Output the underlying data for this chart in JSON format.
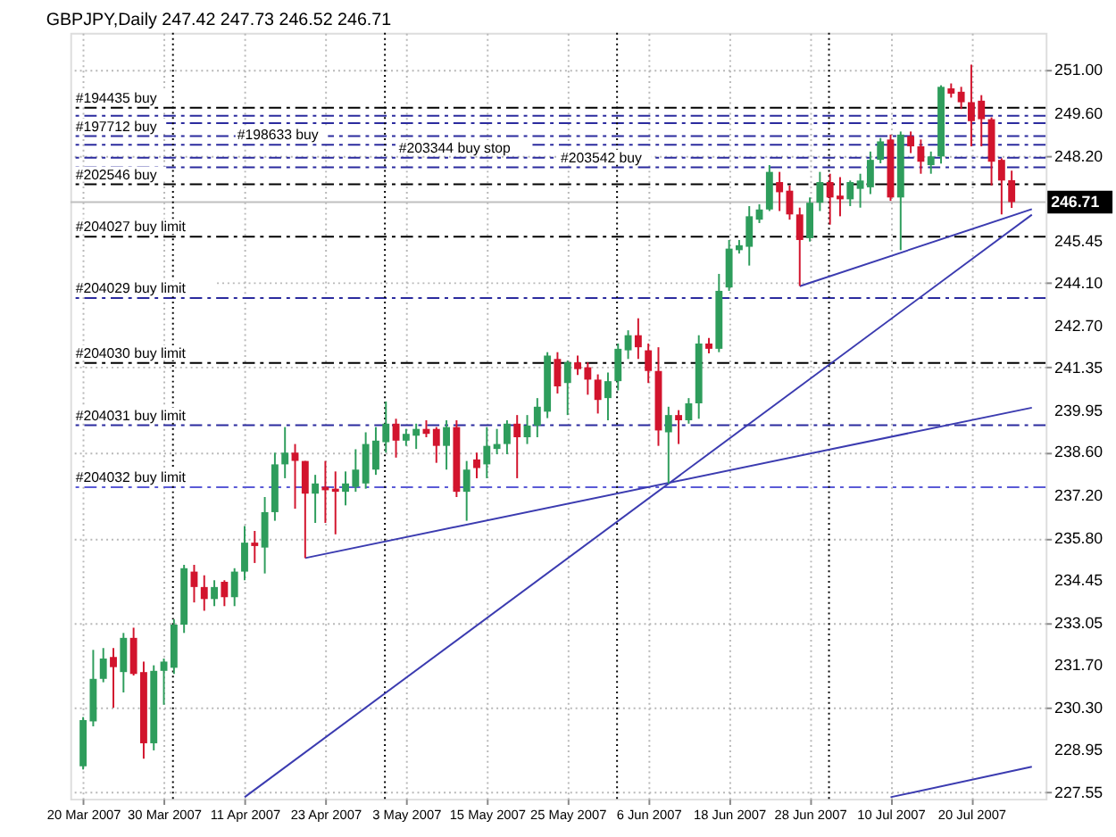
{
  "chart_data": {
    "type": "candlestick",
    "title": "GBPJPY,Daily  247.42 247.73 246.52 246.71",
    "categories": [
      "20 Mar 2007",
      null,
      null,
      null,
      null,
      null,
      null,
      null,
      "30 Mar 2007",
      null,
      null,
      null,
      null,
      null,
      null,
      null,
      "11 Apr 2007",
      null,
      null,
      null,
      null,
      null,
      null,
      null,
      "23 Apr 2007",
      null,
      null,
      null,
      null,
      null,
      null,
      null,
      "3 May 2007",
      null,
      null,
      null,
      null,
      null,
      null,
      null,
      "15 May 2007",
      null,
      null,
      null,
      null,
      null,
      null,
      null,
      "25 May 2007",
      null,
      null,
      null,
      null,
      null,
      null,
      null,
      "6 Jun 2007",
      null,
      null,
      null,
      null,
      null,
      null,
      null,
      "18 Jun 2007",
      null,
      null,
      null,
      null,
      null,
      null,
      null,
      "28 Jun 2007",
      null,
      null,
      null,
      null,
      null,
      null,
      null,
      "10 Jul 2007",
      null,
      null,
      null,
      null,
      null,
      null,
      null,
      "20 Jul 2007",
      null,
      null,
      null,
      null,
      null,
      null
    ],
    "ohlc": [
      [
        228.4,
        230.0,
        228.3,
        229.9
      ],
      [
        229.86,
        232.18,
        229.7,
        231.24
      ],
      [
        231.24,
        232.24,
        231.13,
        231.9
      ],
      [
        231.95,
        232.24,
        230.3,
        231.62
      ],
      [
        231.46,
        232.73,
        230.8,
        232.57
      ],
      [
        232.57,
        232.9,
        231.35,
        231.4
      ],
      [
        231.46,
        231.8,
        228.65,
        229.15
      ],
      [
        229.15,
        231.68,
        228.92,
        231.5
      ],
      [
        231.5,
        231.9,
        230.4,
        231.8
      ],
      [
        231.6,
        233.17,
        231.4,
        233.0
      ],
      [
        233.0,
        234.94,
        232.73,
        234.83
      ],
      [
        234.72,
        234.94,
        233.72,
        234.22
      ],
      [
        234.22,
        234.6,
        233.45,
        233.83
      ],
      [
        233.83,
        234.44,
        233.6,
        234.22
      ],
      [
        234.39,
        234.44,
        233.6,
        233.89
      ],
      [
        233.89,
        234.83,
        233.6,
        234.72
      ],
      [
        234.72,
        236.2,
        234.44,
        235.66
      ],
      [
        235.66,
        236.04,
        235.0,
        235.55
      ],
      [
        235.5,
        237.14,
        234.66,
        236.65
      ],
      [
        236.65,
        238.58,
        236.37,
        238.2
      ],
      [
        238.2,
        239.41,
        237.75,
        238.58
      ],
      [
        238.58,
        238.86,
        236.76,
        238.31
      ],
      [
        238.31,
        238.31,
        235.16,
        237.25
      ],
      [
        237.25,
        237.86,
        236.3,
        237.58
      ],
      [
        237.47,
        238.31,
        236.3,
        237.36
      ],
      [
        237.41,
        237.97,
        235.93,
        237.31
      ],
      [
        237.31,
        237.97,
        236.87,
        237.58
      ],
      [
        237.47,
        238.69,
        237.31,
        238.03
      ],
      [
        237.58,
        239.24,
        237.41,
        238.86
      ],
      [
        238.03,
        239.41,
        237.86,
        238.97
      ],
      [
        238.92,
        240.24,
        238.58,
        239.52
      ],
      [
        239.52,
        239.68,
        238.42,
        238.97
      ],
      [
        238.97,
        239.35,
        238.8,
        239.19
      ],
      [
        239.13,
        239.52,
        238.7,
        239.35
      ],
      [
        239.35,
        239.63,
        239.08,
        239.19
      ],
      [
        239.35,
        239.41,
        238.25,
        238.8
      ],
      [
        238.8,
        239.63,
        238.03,
        239.41
      ],
      [
        239.41,
        239.63,
        237.14,
        237.31
      ],
      [
        237.31,
        238.31,
        236.37,
        238.03
      ],
      [
        238.36,
        238.58,
        237.75,
        238.08
      ],
      [
        238.2,
        239.41,
        237.75,
        238.8
      ],
      [
        238.7,
        239.35,
        238.53,
        238.86
      ],
      [
        238.86,
        239.63,
        238.53,
        239.52
      ],
      [
        239.52,
        239.8,
        237.75,
        239.08
      ],
      [
        239.08,
        239.8,
        238.86,
        239.46
      ],
      [
        239.46,
        240.35,
        239.08,
        240.07
      ],
      [
        239.91,
        241.84,
        239.7,
        241.73
      ],
      [
        241.62,
        241.84,
        240.5,
        240.73
      ],
      [
        240.84,
        241.57,
        239.8,
        241.51
      ],
      [
        241.51,
        241.73,
        241.1,
        241.29
      ],
      [
        241.35,
        241.51,
        240.46,
        240.95
      ],
      [
        240.95,
        241.12,
        239.85,
        240.29
      ],
      [
        240.35,
        241.18,
        239.63,
        240.9
      ],
      [
        240.9,
        242.12,
        240.6,
        241.95
      ],
      [
        241.9,
        242.55,
        241.62,
        242.39
      ],
      [
        242.39,
        242.94,
        241.62,
        242.0
      ],
      [
        241.9,
        242.12,
        240.84,
        241.23
      ],
      [
        241.23,
        242.0,
        238.8,
        239.3
      ],
      [
        239.24,
        240.07,
        237.58,
        239.8
      ],
      [
        239.8,
        239.96,
        238.86,
        239.63
      ],
      [
        239.63,
        240.35,
        239.52,
        240.18
      ],
      [
        240.18,
        242.39,
        239.68,
        242.12
      ],
      [
        242.12,
        242.3,
        241.8,
        241.95
      ],
      [
        241.95,
        244.38,
        241.84,
        243.83
      ],
      [
        243.94,
        245.48,
        243.83,
        245.2
      ],
      [
        245.15,
        245.48,
        245.04,
        245.31
      ],
      [
        245.26,
        246.58,
        244.65,
        246.25
      ],
      [
        246.14,
        246.64,
        246.03,
        246.47
      ],
      [
        246.47,
        247.91,
        246.42,
        247.69
      ],
      [
        247.36,
        247.69,
        246.42,
        247.03
      ],
      [
        247.08,
        247.25,
        246.14,
        246.31
      ],
      [
        246.31,
        246.53,
        243.99,
        245.48
      ],
      [
        245.54,
        246.86,
        245.43,
        246.69
      ],
      [
        246.69,
        247.69,
        246.42,
        247.36
      ],
      [
        247.36,
        247.63,
        245.98,
        246.86
      ],
      [
        246.92,
        247.52,
        246.25,
        246.8
      ],
      [
        246.8,
        247.41,
        246.58,
        247.36
      ],
      [
        247.14,
        247.63,
        246.53,
        247.41
      ],
      [
        247.19,
        248.35,
        246.97,
        248.08
      ],
      [
        248.08,
        248.79,
        247.97,
        248.68
      ],
      [
        248.74,
        248.9,
        246.75,
        246.86
      ],
      [
        246.86,
        249.0,
        245.15,
        248.9
      ],
      [
        248.85,
        249.0,
        248.3,
        248.52
      ],
      [
        248.52,
        248.74,
        247.63,
        248.02
      ],
      [
        247.91,
        248.35,
        247.63,
        248.19
      ],
      [
        248.19,
        250.5,
        247.96,
        250.45
      ],
      [
        250.4,
        250.56,
        250.1,
        250.23
      ],
      [
        250.29,
        250.45,
        249.73,
        249.95
      ],
      [
        249.95,
        251.17,
        248.52,
        249.34
      ],
      [
        250.0,
        250.18,
        248.52,
        249.4
      ],
      [
        249.4,
        249.46,
        247.25,
        248.02
      ],
      [
        248.08,
        248.13,
        246.31,
        247.41
      ],
      [
        247.42,
        247.73,
        246.52,
        246.71
      ],
      null,
      null
    ],
    "colors": [
      "#2e9d5c",
      "#2e9d5c",
      "#2e9d5c",
      "#d2142d",
      "#2e9d5c",
      "#d2142d",
      "#d2142d",
      "#2e9d5c",
      "#2e9d5c",
      "#2e9d5c",
      "#2e9d5c",
      "#d2142d",
      "#d2142d",
      "#2e9d5c",
      "#d2142d",
      "#2e9d5c",
      "#2e9d5c",
      "#d2142d",
      "#2e9d5c",
      "#2e9d5c",
      "#2e9d5c",
      "#d2142d",
      "#d2142d",
      "#2e9d5c",
      "#d2142d",
      "#d2142d",
      "#2e9d5c",
      "#2e9d5c",
      "#2e9d5c",
      "#2e9d5c",
      "#2e9d5c",
      "#d2142d",
      "#2e9d5c",
      "#2e9d5c",
      "#d2142d",
      "#d2142d",
      "#2e9d5c",
      "#d2142d",
      "#2e9d5c",
      "#d2142d",
      "#2e9d5c",
      "#2e9d5c",
      "#2e9d5c",
      "#d2142d",
      "#2e9d5c",
      "#2e9d5c",
      "#2e9d5c",
      "#d2142d",
      "#2e9d5c",
      "#d2142d",
      "#d2142d",
      "#d2142d",
      "#2e9d5c",
      "#2e9d5c",
      "#2e9d5c",
      "#d2142d",
      "#d2142d",
      "#d2142d",
      "#2e9d5c",
      "#d2142d",
      "#2e9d5c",
      "#2e9d5c",
      "#d2142d",
      "#2e9d5c",
      "#2e9d5c",
      "#2e9d5c",
      "#2e9d5c",
      "#2e9d5c",
      "#2e9d5c",
      "#d2142d",
      "#d2142d",
      "#d2142d",
      "#2e9d5c",
      "#2e9d5c",
      "#d2142d",
      "#d2142d",
      "#2e9d5c",
      "#2e9d5c",
      "#2e9d5c",
      "#2e9d5c",
      "#d2142d",
      "#2e9d5c",
      "#d2142d",
      "#d2142d",
      "#2e9d5c",
      "#2e9d5c",
      "#d2142d",
      "#d2142d",
      "#d2142d",
      "#d2142d",
      "#d2142d",
      "#d2142d",
      "#d2142d",
      null,
      null
    ],
    "series": [
      {
        "type": "line",
        "color": "#3b3bb0",
        "values": [
          null,
          null,
          null,
          null,
          null,
          null,
          null,
          null,
          null,
          null,
          null,
          null,
          null,
          null,
          null,
          null,
          null,
          null,
          null,
          null,
          null,
          null,
          235.16,
          null,
          null,
          null,
          null,
          null,
          null,
          null,
          null,
          null,
          null,
          null,
          null,
          null,
          null,
          null,
          null,
          null,
          null,
          null,
          null,
          null,
          null,
          null,
          null,
          null,
          null,
          null,
          null,
          null,
          null,
          null,
          null,
          null,
          null,
          null,
          null,
          null,
          null,
          null,
          null,
          null,
          null,
          null,
          null,
          null,
          null,
          null,
          null,
          null,
          null,
          null,
          null,
          null,
          null,
          null,
          null,
          null,
          null,
          null,
          null,
          null,
          null,
          null,
          null,
          null,
          null,
          null,
          null,
          null,
          null,
          null,
          240.04
        ]
      },
      {
        "type": "line",
        "color": "#3b3bb0",
        "values": [
          null,
          null,
          null,
          null,
          null,
          null,
          null,
          null,
          null,
          null,
          null,
          null,
          null,
          null,
          null,
          null,
          227.4,
          null,
          null,
          null,
          null,
          null,
          null,
          null,
          null,
          null,
          null,
          null,
          null,
          null,
          null,
          null,
          null,
          null,
          null,
          null,
          null,
          null,
          null,
          null,
          null,
          null,
          null,
          null,
          null,
          null,
          null,
          null,
          null,
          null,
          null,
          null,
          null,
          null,
          null,
          null,
          null,
          null,
          null,
          null,
          null,
          null,
          null,
          null,
          null,
          null,
          null,
          null,
          null,
          null,
          null,
          null,
          null,
          null,
          null,
          null,
          null,
          null,
          null,
          null,
          null,
          null,
          null,
          null,
          null,
          null,
          null,
          null,
          null,
          null,
          null,
          null,
          null,
          null,
          246.3
        ]
      },
      {
        "type": "line",
        "color": "#3b3bb0",
        "values": [
          null,
          null,
          null,
          null,
          null,
          null,
          null,
          null,
          null,
          null,
          null,
          null,
          null,
          null,
          null,
          null,
          null,
          null,
          null,
          null,
          null,
          null,
          null,
          null,
          null,
          null,
          null,
          null,
          null,
          null,
          null,
          null,
          null,
          null,
          null,
          null,
          null,
          null,
          null,
          null,
          null,
          null,
          null,
          null,
          null,
          null,
          null,
          null,
          null,
          null,
          null,
          null,
          null,
          null,
          null,
          null,
          null,
          null,
          null,
          null,
          null,
          null,
          null,
          null,
          null,
          null,
          null,
          null,
          null,
          null,
          null,
          243.98,
          null,
          null,
          null,
          null,
          null,
          null,
          null,
          null,
          null,
          null,
          null,
          null,
          null,
          null,
          null,
          null,
          null,
          null,
          null,
          null,
          null,
          null,
          246.48
        ]
      },
      {
        "type": "line",
        "color": "#3b3bb0",
        "values": [
          null,
          null,
          null,
          null,
          null,
          null,
          null,
          null,
          null,
          null,
          null,
          null,
          null,
          null,
          null,
          null,
          null,
          null,
          null,
          null,
          null,
          null,
          null,
          null,
          null,
          null,
          null,
          null,
          null,
          null,
          null,
          null,
          null,
          null,
          null,
          null,
          null,
          null,
          null,
          null,
          null,
          null,
          null,
          null,
          null,
          null,
          null,
          null,
          null,
          null,
          null,
          null,
          null,
          null,
          null,
          null,
          null,
          null,
          null,
          null,
          null,
          null,
          null,
          null,
          null,
          null,
          null,
          null,
          null,
          null,
          null,
          null,
          null,
          null,
          null,
          null,
          null,
          null,
          null,
          null,
          227.4,
          null,
          null,
          null,
          null,
          null,
          null,
          null,
          null,
          null,
          null,
          null,
          null,
          null,
          228.39
        ]
      }
    ],
    "ref_lines": [
      {
        "axis": "y",
        "value": 249.77,
        "label": "#194435 buy",
        "color": "#000000",
        "line_style": "dashed"
      },
      {
        "axis": "y",
        "value": 249.51,
        "label": null,
        "color": "#2b2b9e",
        "line_style": "dashed"
      },
      {
        "axis": "y",
        "value": 249.27,
        "label": null,
        "color": "#2b2b9e",
        "line_style": "dashed"
      },
      {
        "axis": "y",
        "value": 248.85,
        "label": "#197712 buy",
        "color": "#2b2b9e",
        "line_style": "dashed"
      },
      {
        "axis": "y",
        "value": 248.57,
        "label": "#198633 buy",
        "color": "#2b2b9e",
        "line_style": "dashed"
      },
      {
        "axis": "y",
        "value": 248.15,
        "label": "#203344 buy stop",
        "color": "#2b2b9e",
        "line_style": "dashed"
      },
      {
        "axis": "y",
        "value": 247.84,
        "label": "#203542 buy",
        "color": "#2b2b9e",
        "line_style": "dashed"
      },
      {
        "axis": "y",
        "value": 247.29,
        "label": "#202546 buy",
        "color": "#000000",
        "line_style": "dashed"
      },
      {
        "axis": "y",
        "value": 246.71,
        "label": "246.71",
        "color": "#c0c0c0",
        "line_style": "solid"
      },
      {
        "axis": "y",
        "value": 245.59,
        "label": "#204027 buy limit",
        "color": "#000000",
        "line_style": "dashed"
      },
      {
        "axis": "y",
        "value": 243.6,
        "label": "#204029 buy limit",
        "color": "#2b2b9e",
        "line_style": "dashed"
      },
      {
        "axis": "y",
        "value": 241.49,
        "label": "#204030 buy limit",
        "color": "#000000",
        "line_style": "dashed"
      },
      {
        "axis": "y",
        "value": 239.47,
        "label": "#204031 buy limit",
        "color": "#2b2b9e",
        "line_style": "dashed"
      },
      {
        "axis": "y",
        "value": 237.46,
        "label": "#204032 buy limit",
        "color": "#5a5ad6",
        "line_style": "dashed"
      }
    ],
    "ylim": [
      227.35,
      252.2
    ],
    "yticks": [
      {
        "value": 251,
        "label": "251.00"
      },
      {
        "value": 249.6,
        "label": "249.60"
      },
      {
        "value": 248.2,
        "label": "248.20"
      },
      {
        "value": 245.45,
        "label": "245.45"
      },
      {
        "value": 244.1,
        "label": "244.10"
      },
      {
        "value": 242.7,
        "label": "242.70"
      },
      {
        "value": 241.35,
        "label": "241.35"
      },
      {
        "value": 239.95,
        "label": "239.95"
      },
      {
        "value": 238.6,
        "label": "238.60"
      },
      {
        "value": 237.2,
        "label": "237.20"
      },
      {
        "value": 235.8,
        "label": "235.80"
      },
      {
        "value": 234.45,
        "label": "234.45"
      },
      {
        "value": 233.05,
        "label": "233.05"
      },
      {
        "value": 231.7,
        "label": "231.70"
      },
      {
        "value": 230.3,
        "label": "230.30"
      },
      {
        "value": 228.95,
        "label": "228.95"
      },
      {
        "value": 227.55,
        "label": "227.55"
      }
    ],
    "grid": true
  }
}
